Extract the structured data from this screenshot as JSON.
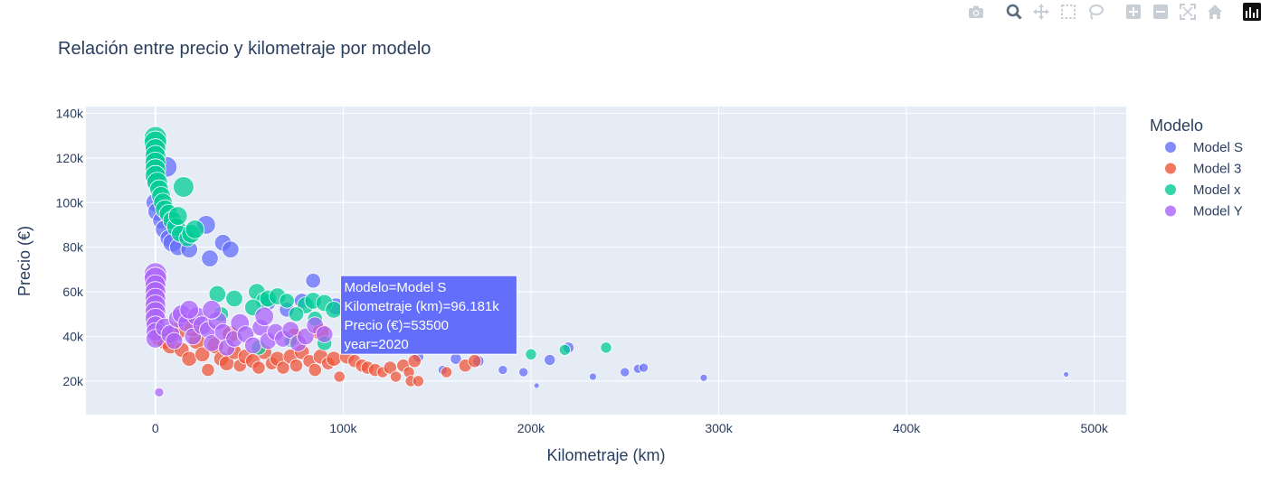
{
  "modebar": {
    "icons": [
      "camera-icon",
      "zoom-icon",
      "pan-icon",
      "box-select-icon",
      "lasso-select-icon",
      "zoom-in-icon",
      "zoom-out-icon",
      "autoscale-icon",
      "reset-axes-icon",
      "plotly-logo-icon"
    ]
  },
  "colors": {
    "plot_bg": "#e5ecf6",
    "grid": "#ffffff",
    "text": "#2a3f5f",
    "model_s": "#636efa",
    "model_3": "#ef553b",
    "model_x": "#00cc96",
    "model_y": "#ab63fa"
  },
  "chart_data": {
    "type": "scatter",
    "title": "Relación entre precio y kilometraje por modelo",
    "xlabel": "Kilometraje (km)",
    "ylabel": "Precio (€)",
    "xlim": [
      -37000,
      517000
    ],
    "ylim": [
      5000,
      143000
    ],
    "x_ticks": [
      0,
      100000,
      200000,
      300000,
      400000,
      500000
    ],
    "x_tick_labels": [
      "0",
      "100k",
      "200k",
      "300k",
      "400k",
      "500k"
    ],
    "y_ticks": [
      20000,
      40000,
      60000,
      80000,
      100000,
      120000,
      140000
    ],
    "y_tick_labels": [
      "20k",
      "40k",
      "60k",
      "80k",
      "100k",
      "120k",
      "140k"
    ],
    "grid": true,
    "legend": {
      "title": "Modelo",
      "position": "top-right",
      "entries": [
        "Model S",
        "Model 3",
        "Model x",
        "Model Y"
      ]
    },
    "size_encoding": "year",
    "series": [
      {
        "name": "Model S",
        "points": [
          [
            0,
            125000,
            2022
          ],
          [
            0,
            118000,
            2022
          ],
          [
            0,
            110000,
            2021
          ],
          [
            0,
            100000,
            2021
          ],
          [
            1000,
            96000,
            2021
          ],
          [
            3000,
            92000,
            2020
          ],
          [
            5000,
            88000,
            2021
          ],
          [
            7000,
            84000,
            2020
          ],
          [
            9000,
            82000,
            2021
          ],
          [
            6000,
            116000,
            2022
          ],
          [
            12000,
            80000,
            2020
          ],
          [
            15000,
            86000,
            2021
          ],
          [
            18000,
            79000,
            2020
          ],
          [
            27000,
            90000,
            2021
          ],
          [
            29000,
            75000,
            2020
          ],
          [
            36000,
            82000,
            2020
          ],
          [
            40000,
            79000,
            2020
          ],
          [
            84000,
            65000,
            2019
          ],
          [
            78000,
            56000,
            2019
          ],
          [
            96181,
            53500,
            2020
          ],
          [
            60000,
            55000,
            2019
          ],
          [
            70000,
            52000,
            2019
          ],
          [
            112000,
            40000,
            2019
          ],
          [
            120000,
            38000,
            2018
          ],
          [
            128000,
            36000,
            2018
          ],
          [
            142000,
            35000,
            2018
          ],
          [
            148000,
            35000,
            2018
          ],
          [
            160000,
            30000,
            2017
          ],
          [
            172000,
            29000,
            2017
          ],
          [
            185000,
            25000,
            2016
          ],
          [
            196000,
            24000,
            2016
          ],
          [
            210000,
            29500,
            2017
          ],
          [
            220000,
            35000,
            2017
          ],
          [
            233000,
            22000,
            2015
          ],
          [
            250000,
            24000,
            2016
          ],
          [
            257000,
            25500,
            2016
          ],
          [
            260000,
            26000,
            2016
          ],
          [
            292000,
            21500,
            2015
          ],
          [
            485000,
            23000,
            2014
          ],
          [
            203000,
            18000,
            2014
          ],
          [
            140000,
            31000,
            2017
          ],
          [
            153000,
            25000,
            2016
          ]
        ]
      },
      {
        "name": "Model 3",
        "points": [
          [
            2000,
            40000,
            2021
          ],
          [
            5000,
            38000,
            2020
          ],
          [
            8000,
            36000,
            2020
          ],
          [
            11000,
            42000,
            2021
          ],
          [
            14000,
            34000,
            2019
          ],
          [
            18000,
            30000,
            2019
          ],
          [
            22000,
            38000,
            2020
          ],
          [
            25000,
            32000,
            2019
          ],
          [
            28000,
            25000,
            2018
          ],
          [
            32000,
            36000,
            2020
          ],
          [
            35000,
            30000,
            2019
          ],
          [
            38000,
            28000,
            2019
          ],
          [
            42000,
            33000,
            2019
          ],
          [
            45000,
            27000,
            2018
          ],
          [
            48000,
            31000,
            2019
          ],
          [
            52000,
            29000,
            2019
          ],
          [
            55000,
            26000,
            2018
          ],
          [
            58000,
            33000,
            2019
          ],
          [
            62000,
            28000,
            2018
          ],
          [
            65000,
            30000,
            2019
          ],
          [
            68000,
            26000,
            2018
          ],
          [
            72000,
            31000,
            2019
          ],
          [
            75000,
            27000,
            2018
          ],
          [
            78000,
            33000,
            2019
          ],
          [
            82000,
            29000,
            2018
          ],
          [
            85000,
            25000,
            2018
          ],
          [
            88000,
            31000,
            2019
          ],
          [
            92000,
            28000,
            2018
          ],
          [
            95000,
            30000,
            2019
          ],
          [
            98000,
            22000,
            2017
          ],
          [
            102000,
            31000,
            2019
          ],
          [
            106000,
            29000,
            2018
          ],
          [
            110000,
            27000,
            2018
          ],
          [
            113000,
            26000,
            2018
          ],
          [
            117000,
            25000,
            2018
          ],
          [
            121000,
            24000,
            2017
          ],
          [
            125000,
            26000,
            2018
          ],
          [
            128000,
            22000,
            2017
          ],
          [
            132000,
            27000,
            2018
          ],
          [
            135000,
            24000,
            2017
          ],
          [
            138000,
            29000,
            2018
          ],
          [
            136000,
            20000,
            2017
          ],
          [
            140000,
            20000,
            2017
          ],
          [
            155000,
            24000,
            2017
          ],
          [
            165000,
            27000,
            2018
          ],
          [
            170000,
            29000,
            2018
          ],
          [
            88000,
            42000,
            2020
          ],
          [
            74000,
            40000,
            2020
          ],
          [
            20000,
            44000,
            2021
          ],
          [
            40000,
            41000,
            2020
          ]
        ]
      },
      {
        "name": "Model x",
        "points": [
          [
            0,
            129000,
            2023
          ],
          [
            0,
            127000,
            2023
          ],
          [
            0,
            124000,
            2022
          ],
          [
            0,
            121000,
            2022
          ],
          [
            0,
            118000,
            2022
          ],
          [
            0,
            115000,
            2022
          ],
          [
            0,
            112000,
            2022
          ],
          [
            1000,
            109000,
            2022
          ],
          [
            2000,
            106000,
            2021
          ],
          [
            3000,
            103000,
            2021
          ],
          [
            4000,
            100000,
            2021
          ],
          [
            5000,
            97000,
            2021
          ],
          [
            7000,
            95000,
            2021
          ],
          [
            9000,
            92000,
            2021
          ],
          [
            11000,
            89000,
            2021
          ],
          [
            12000,
            94000,
            2021
          ],
          [
            13000,
            86000,
            2020
          ],
          [
            15000,
            107000,
            2022
          ],
          [
            17000,
            84000,
            2020
          ],
          [
            19000,
            86000,
            2021
          ],
          [
            21000,
            88000,
            2021
          ],
          [
            33000,
            59000,
            2020
          ],
          [
            42000,
            57000,
            2020
          ],
          [
            54000,
            60000,
            2020
          ],
          [
            58000,
            56000,
            2020
          ],
          [
            60000,
            57000,
            2020
          ],
          [
            65000,
            58000,
            2020
          ],
          [
            70000,
            56000,
            2019
          ],
          [
            80000,
            54000,
            2020
          ],
          [
            84000,
            56000,
            2020
          ],
          [
            90000,
            55000,
            2020
          ],
          [
            95000,
            52000,
            2020
          ],
          [
            52000,
            53000,
            2020
          ],
          [
            75000,
            50000,
            2019
          ],
          [
            85000,
            48000,
            2019
          ],
          [
            35000,
            50000,
            2019
          ],
          [
            55000,
            35000,
            2019
          ],
          [
            90000,
            37000,
            2019
          ],
          [
            200000,
            32000,
            2017
          ],
          [
            218000,
            34000,
            2017
          ],
          [
            240000,
            35000,
            2017
          ],
          [
            72000,
            38000,
            2018
          ]
        ]
      },
      {
        "name": "Model Y",
        "points": [
          [
            0,
            68000,
            2023
          ],
          [
            0,
            66000,
            2023
          ],
          [
            0,
            63000,
            2022
          ],
          [
            0,
            60000,
            2022
          ],
          [
            0,
            57000,
            2022
          ],
          [
            0,
            54000,
            2022
          ],
          [
            0,
            51000,
            2022
          ],
          [
            0,
            48000,
            2022
          ],
          [
            0,
            45000,
            2021
          ],
          [
            0,
            42000,
            2021
          ],
          [
            0,
            39000,
            2021
          ],
          [
            2000,
            15000,
            2016
          ],
          [
            5000,
            44000,
            2021
          ],
          [
            8000,
            41000,
            2021
          ],
          [
            10000,
            38000,
            2020
          ],
          [
            12000,
            48000,
            2021
          ],
          [
            14000,
            50000,
            2021
          ],
          [
            17000,
            46000,
            2021
          ],
          [
            20000,
            40000,
            2020
          ],
          [
            22000,
            49000,
            2021
          ],
          [
            25000,
            45000,
            2021
          ],
          [
            28000,
            43000,
            2020
          ],
          [
            30000,
            37000,
            2020
          ],
          [
            33000,
            47000,
            2021
          ],
          [
            36000,
            42000,
            2020
          ],
          [
            38000,
            35000,
            2020
          ],
          [
            42000,
            39000,
            2020
          ],
          [
            45000,
            46000,
            2021
          ],
          [
            48000,
            41000,
            2020
          ],
          [
            52000,
            36000,
            2020
          ],
          [
            56000,
            44000,
            2020
          ],
          [
            60000,
            38000,
            2020
          ],
          [
            64000,
            42000,
            2020
          ],
          [
            68000,
            39000,
            2020
          ],
          [
            72000,
            43000,
            2020
          ],
          [
            76000,
            37000,
            2020
          ],
          [
            80000,
            40000,
            2020
          ],
          [
            85000,
            45000,
            2020
          ],
          [
            90000,
            41000,
            2020
          ],
          [
            58000,
            49000,
            2021
          ],
          [
            30000,
            52000,
            2021
          ],
          [
            18000,
            52000,
            2021
          ]
        ]
      }
    ],
    "tooltip": {
      "lines": [
        "Modelo=Model S",
        "Kilometraje (km)=96.181k",
        "Precio (€)=53500",
        "year=2020"
      ],
      "point": [
        96181,
        53500
      ]
    }
  }
}
